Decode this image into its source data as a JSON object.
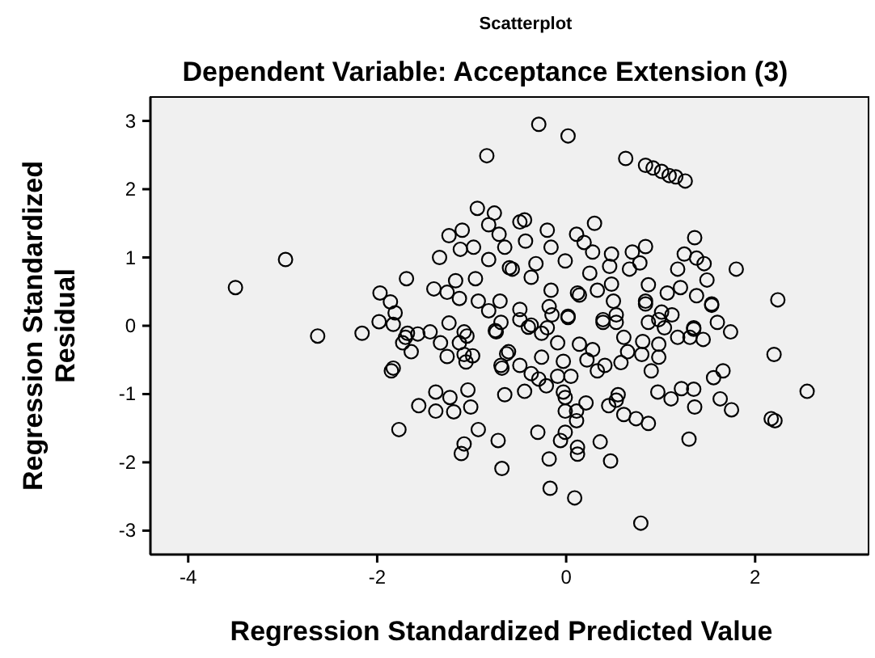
{
  "chart_data": {
    "type": "scatter",
    "title": "Scatterplot",
    "subtitle": "Dependent Variable: Acceptance Extension (3)",
    "xlabel": "Regression Standardized Predicted Value",
    "ylabel": "Regression Standardized Residual",
    "xlim": [
      -4.4,
      3.2
    ],
    "ylim": [
      -3.35,
      3.35
    ],
    "xticks": [
      -4,
      -2,
      0,
      2
    ],
    "yticks": [
      -3,
      -2,
      -1,
      0,
      1,
      2,
      3
    ],
    "grid": false,
    "marker": "circle",
    "series": [
      {
        "color": "#000000",
        "x": [
          -0.84,
          -2.97,
          -3.5,
          -2.63,
          -0.94,
          -0.76,
          -0.82,
          -0.71,
          -1.24,
          -1.1,
          -1.12,
          -0.98,
          -0.82,
          -1.34,
          -1.69,
          -1.4,
          -1.97,
          -1.26,
          -1.17,
          -0.96,
          -1.13,
          -1.86,
          -1.81,
          -1.98,
          -1.83,
          -1.24,
          -0.93,
          -0.7,
          -0.82,
          -0.69,
          -2.16,
          -1.68,
          -1.44,
          -1.08,
          -0.6,
          -1.7,
          -1.57,
          -1.64,
          -1.73,
          -1.33,
          -1.26,
          -1.13,
          -1.05,
          -1.08,
          -0.99,
          -1.06,
          -1.85,
          -1.83,
          -1.38,
          -1.23,
          -1.04,
          -1.56,
          -1.38,
          -1.19,
          -1.01,
          -1.77,
          -0.93,
          -1.08,
          -1.11,
          -0.72,
          -0.68,
          -0.69,
          -0.65,
          -0.68,
          -0.75,
          -0.63,
          -0.29,
          0.02,
          0.63,
          0.84,
          0.92,
          1.01,
          1.09,
          1.16,
          1.26,
          -0.49,
          -0.44,
          0.3,
          -0.2,
          -0.43,
          0.11,
          0.19,
          0.28,
          -0.16,
          -0.65,
          1.36,
          0.84,
          0.7,
          0.48,
          1.25,
          1.38,
          1.46,
          1.8,
          2.24,
          -0.57,
          -0.32,
          -0.01,
          0.46,
          0.25,
          0.67,
          0.78,
          1.18,
          1.49,
          0.87,
          1.21,
          1.38,
          1.54,
          1.6,
          1.74,
          0.48,
          0.5,
          0.33,
          0.12,
          -0.16,
          -0.37,
          -0.18,
          0.02,
          -0.49,
          -0.37,
          -0.2,
          0.39,
          0.84,
          1.01,
          0.87,
          1.35,
          1.12,
          0.53,
          2.2,
          2.55,
          2.17,
          2.21,
          1.66,
          1.56,
          1.63,
          1.75,
          1.35,
          1.22,
          1.36,
          1.11,
          0.97,
          1.3,
          0.87,
          0.74,
          0.61,
          0.55,
          0.45,
          0.53,
          0.36,
          0.47,
          0.21,
          0.12,
          0.12,
          0.09,
          -0.17,
          -0.18,
          -0.06,
          -0.01,
          0.11,
          0.11,
          -0.01,
          -0.01,
          -0.3,
          0.79,
          -0.61,
          -0.44,
          -0.37,
          -0.29,
          -0.21,
          -0.09,
          0.05,
          -0.03,
          -0.49,
          -0.26,
          -0.03,
          0.22,
          0.33,
          0.41,
          0.58,
          0.65,
          0.8,
          0.9,
          0.98,
          0.98,
          0.81,
          0.14,
          0.28,
          0.61,
          -0.09,
          -0.26,
          -0.4,
          -0.74,
          -0.49,
          -0.15,
          0.39,
          0.53,
          0.84,
          0.98,
          1.04,
          1.18,
          1.31,
          1.45,
          1.35,
          1.54,
          0.14,
          1.07,
          0.02
        ],
        "values": [
          2.49,
          0.97,
          0.56,
          -0.15,
          1.72,
          1.65,
          1.48,
          1.34,
          1.32,
          1.4,
          1.12,
          1.15,
          0.97,
          1.0,
          0.69,
          0.54,
          0.48,
          0.49,
          0.66,
          0.69,
          0.4,
          0.35,
          0.19,
          0.06,
          0.02,
          0.04,
          0.36,
          0.36,
          0.22,
          0.05,
          -0.11,
          -0.11,
          -0.09,
          -0.09,
          0.85,
          -0.17,
          -0.12,
          -0.38,
          -0.25,
          -0.25,
          -0.45,
          -0.25,
          -0.15,
          -0.42,
          -0.44,
          -0.53,
          -0.66,
          -0.62,
          -0.97,
          -1.05,
          -0.94,
          -1.17,
          -1.25,
          -1.26,
          -1.19,
          -1.52,
          -1.52,
          -1.73,
          -1.87,
          -1.68,
          -2.09,
          -0.58,
          -1.01,
          -0.62,
          -0.07,
          -0.41,
          2.95,
          2.78,
          2.45,
          2.35,
          2.31,
          2.26,
          2.2,
          2.18,
          2.12,
          1.52,
          1.55,
          1.5,
          1.4,
          1.24,
          1.34,
          1.22,
          1.08,
          1.15,
          1.15,
          1.29,
          1.16,
          1.08,
          1.05,
          1.05,
          0.99,
          0.91,
          0.83,
          0.38,
          0.83,
          0.91,
          0.95,
          0.87,
          0.77,
          0.83,
          0.92,
          0.83,
          0.67,
          0.6,
          0.56,
          0.44,
          0.32,
          0.05,
          -0.09,
          0.61,
          0.36,
          0.52,
          0.48,
          0.52,
          0.71,
          0.28,
          0.14,
          0.24,
          0.01,
          -0.03,
          0.05,
          0.36,
          0.2,
          0.05,
          -0.03,
          0.16,
          0.16,
          -0.42,
          -0.96,
          -1.36,
          -1.39,
          -0.66,
          -0.76,
          -1.07,
          -1.23,
          -0.93,
          -0.92,
          -1.19,
          -1.07,
          -0.97,
          -1.66,
          -1.43,
          -1.36,
          -1.3,
          -1.01,
          -1.17,
          -1.09,
          -1.7,
          -1.98,
          -1.13,
          -1.78,
          -1.88,
          -2.52,
          -2.38,
          -1.95,
          -1.68,
          -1.56,
          -1.39,
          -1.25,
          -1.25,
          -1.05,
          -1.56,
          -2.89,
          -0.38,
          -0.96,
          -0.7,
          -0.78,
          -0.88,
          -0.74,
          -0.74,
          -0.97,
          -0.58,
          -0.46,
          -0.52,
          -0.5,
          -0.66,
          -0.58,
          -0.54,
          -0.38,
          -0.42,
          -0.66,
          -0.46,
          -0.27,
          -0.23,
          -0.27,
          -0.35,
          -0.17,
          -0.25,
          -0.11,
          -0.02,
          -0.09,
          0.09,
          0.16,
          0.09,
          0.05,
          0.32,
          0.09,
          -0.03,
          -0.17,
          -0.17,
          -0.2,
          -0.05,
          0.3,
          0.45,
          0.48,
          0.12
        ]
      }
    ]
  }
}
